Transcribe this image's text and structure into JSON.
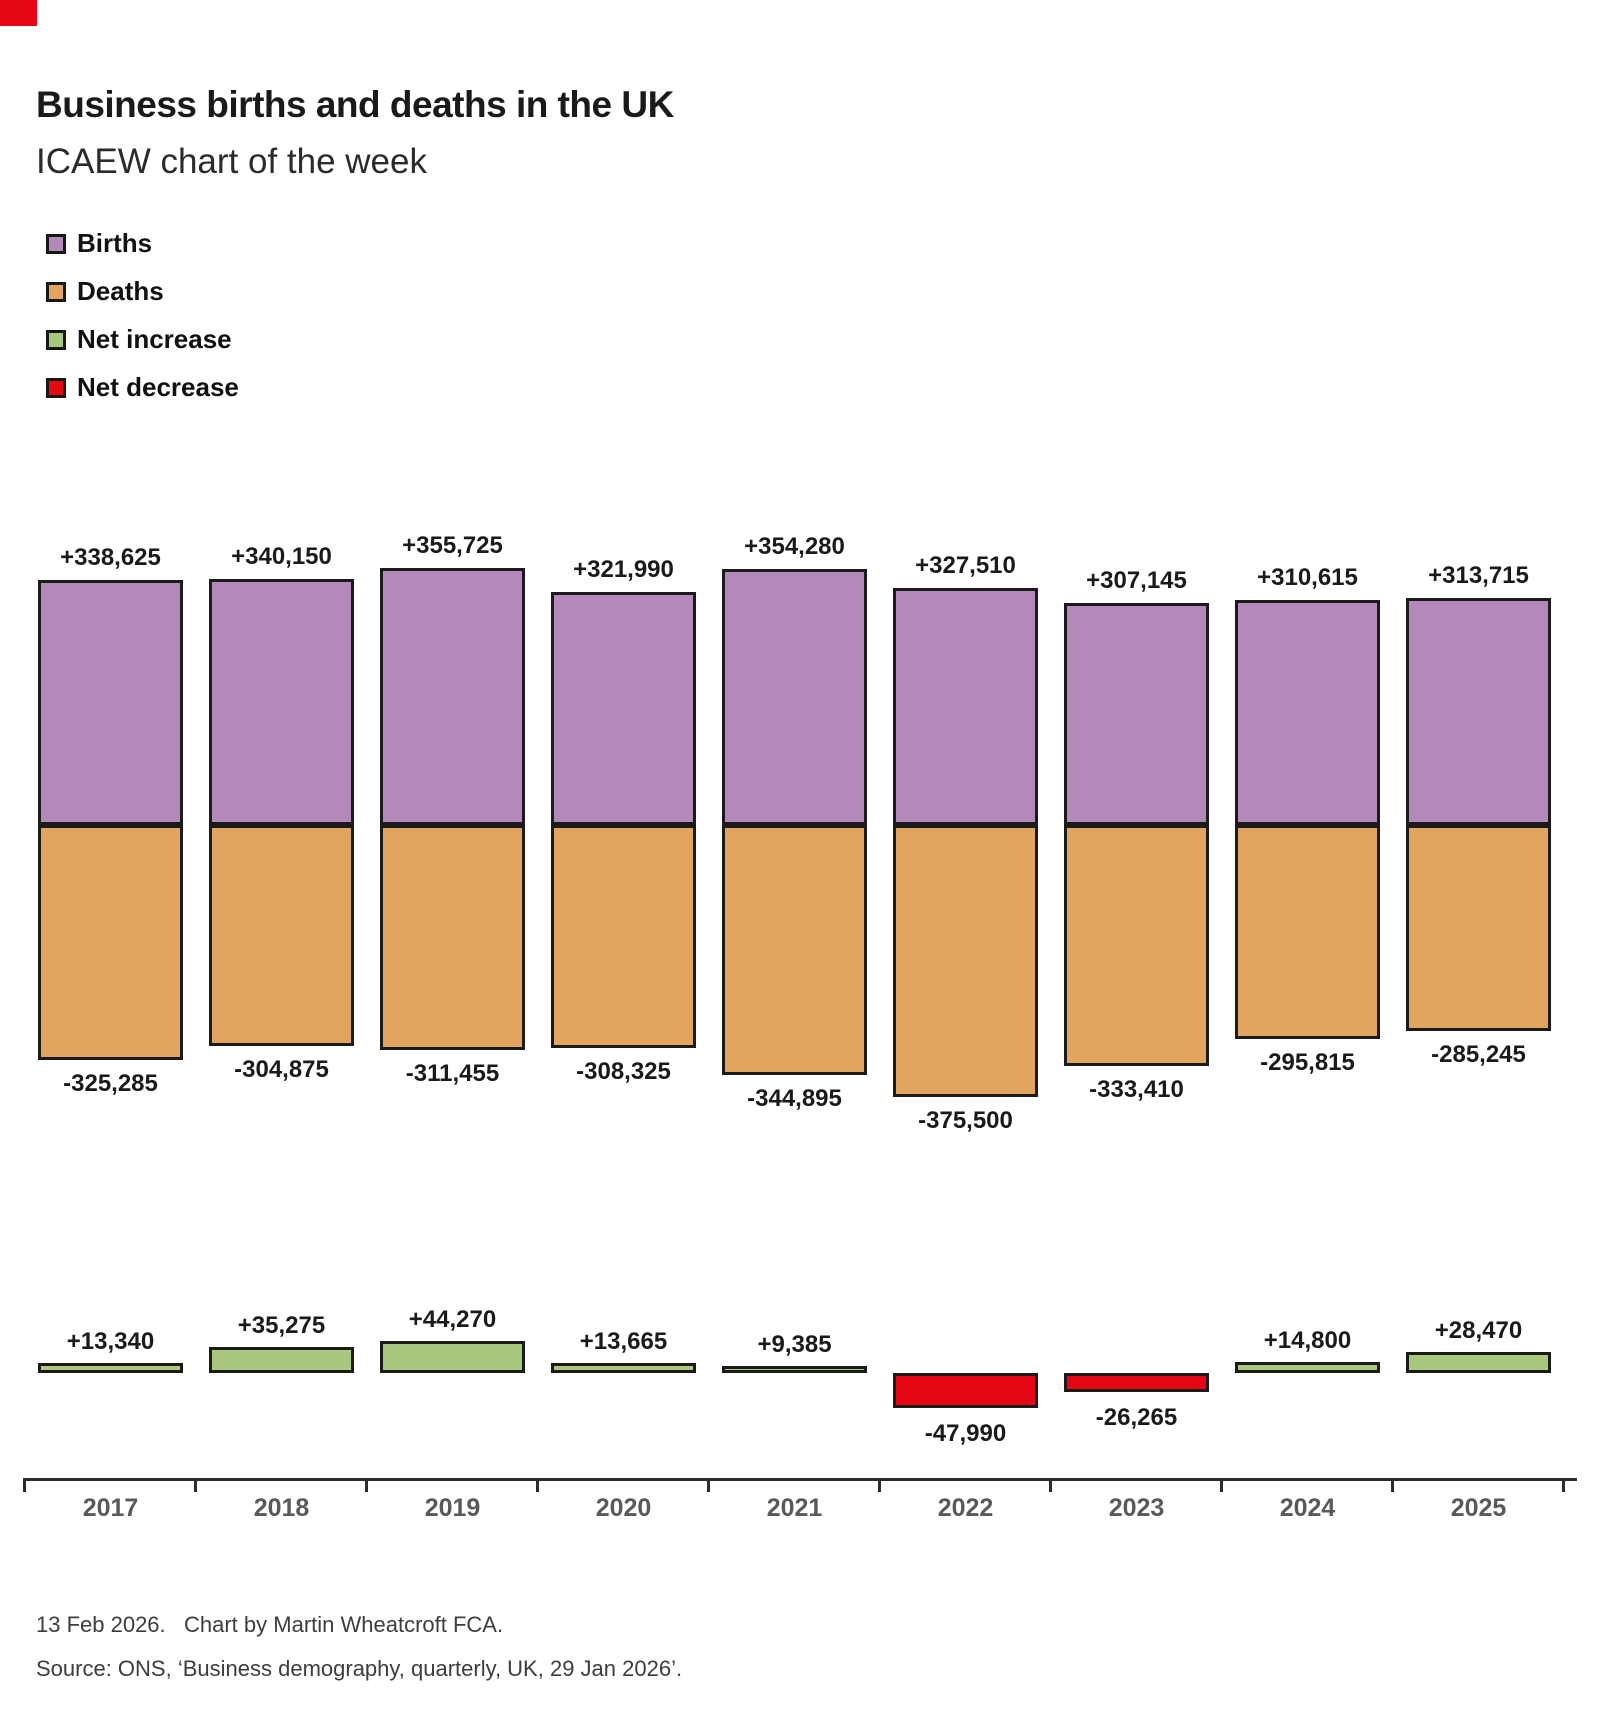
{
  "brand": {
    "corner_color": "#e60613"
  },
  "header": {
    "title": "Business births and deaths in the UK",
    "subtitle": "ICAEW chart of the week"
  },
  "legend": [
    {
      "label": "Births",
      "color": "#b289b8"
    },
    {
      "label": "Deaths",
      "color": "#e3a55e"
    },
    {
      "label": "Net increase",
      "color": "#a8c87d"
    },
    {
      "label": "Net decrease",
      "color": "#e60613"
    }
  ],
  "chart_data": {
    "type": "bar",
    "title": "Business births and deaths in the UK",
    "subtitle": "ICAEW chart of the week",
    "categories": [
      "2017",
      "2018",
      "2019",
      "2020",
      "2021",
      "2022",
      "2023",
      "2024",
      "2025"
    ],
    "series": [
      {
        "name": "Births",
        "color": "#b289b8",
        "values": [
          338625,
          340150,
          355725,
          321990,
          354280,
          327510,
          307145,
          310615,
          313715
        ],
        "labels": [
          "+338,625",
          "+340,150",
          "+355,725",
          "+321,990",
          "+354,280",
          "+327,510",
          "+307,145",
          "+310,615",
          "+313,715"
        ]
      },
      {
        "name": "Deaths",
        "color": "#e3a55e",
        "values": [
          -325285,
          -304875,
          -311455,
          -308325,
          -344895,
          -375500,
          -333410,
          -295815,
          -285245
        ],
        "labels": [
          "-325,285",
          "-304,875",
          "-311,455",
          "-308,325",
          "-344,895",
          "-375,500",
          "-333,410",
          "-295,815",
          "-285,245"
        ]
      },
      {
        "name": "Net change",
        "increase_color": "#a8c87d",
        "decrease_color": "#e60613",
        "values": [
          13340,
          35275,
          44270,
          13665,
          9385,
          -47990,
          -26265,
          14800,
          28470
        ],
        "labels": [
          "+13,340",
          "+35,275",
          "+44,270",
          "+13,665",
          "+9,385",
          "-47,990",
          "-26,265",
          "+14,800",
          "+28,470"
        ]
      }
    ],
    "axis": {
      "tick_label_color": "#595959",
      "line_color": "#2b2b2b"
    },
    "legend_position": "top-left",
    "grid": false,
    "data_labels": true
  },
  "footer": {
    "line1": "13 Feb 2026.   Chart by Martin Wheatcroft FCA.",
    "line2": "Source: ONS, ‘Business demography, quarterly, UK, 29 Jan 2026’."
  }
}
